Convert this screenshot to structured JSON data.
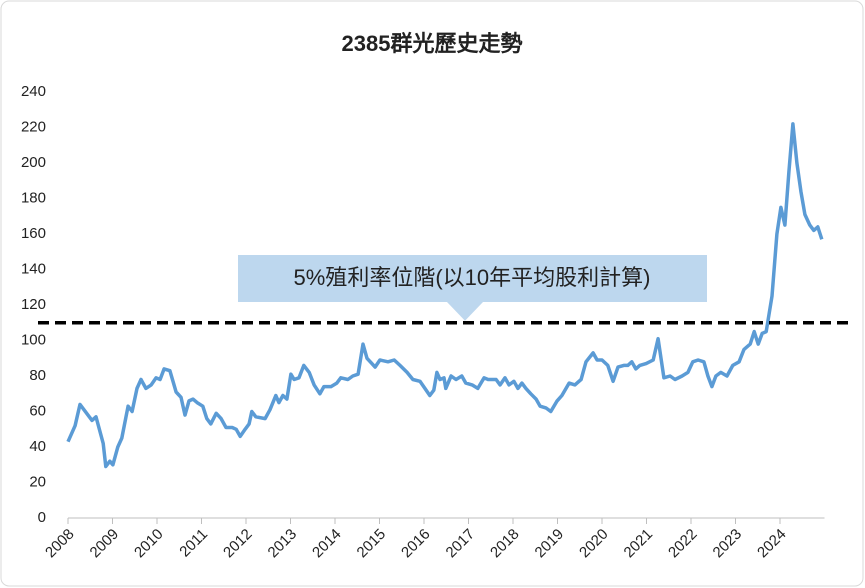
{
  "chart_data": {
    "type": "line",
    "title": "2385群光歷史走勢",
    "x": [
      2008.0,
      2008.16,
      2008.27,
      2008.54,
      2008.63,
      2008.79,
      2008.85,
      2008.94,
      2009.01,
      2009.12,
      2009.21,
      2009.35,
      2009.44,
      2009.55,
      2009.64,
      2009.75,
      2009.87,
      2009.98,
      2010.07,
      2010.16,
      2010.29,
      2010.43,
      2010.54,
      2010.63,
      2010.72,
      2010.81,
      2010.9,
      2011.03,
      2011.12,
      2011.21,
      2011.33,
      2011.44,
      2011.55,
      2011.69,
      2011.78,
      2011.87,
      2011.98,
      2012.07,
      2012.13,
      2012.22,
      2012.43,
      2012.54,
      2012.67,
      2012.74,
      2012.83,
      2012.92,
      2013.01,
      2013.08,
      2013.19,
      2013.3,
      2013.42,
      2013.53,
      2013.66,
      2013.75,
      2013.91,
      2014.04,
      2014.13,
      2014.29,
      2014.4,
      2014.52,
      2014.63,
      2014.72,
      2014.83,
      2014.9,
      2015.01,
      2015.19,
      2015.33,
      2015.46,
      2015.62,
      2015.75,
      2015.91,
      2016.02,
      2016.13,
      2016.22,
      2016.29,
      2016.36,
      2016.45,
      2016.49,
      2016.61,
      2016.72,
      2016.85,
      2016.94,
      2017.08,
      2017.21,
      2017.35,
      2017.44,
      2017.62,
      2017.71,
      2017.82,
      2017.91,
      2018.02,
      2018.11,
      2018.2,
      2018.29,
      2018.4,
      2018.52,
      2018.61,
      2018.74,
      2018.85,
      2018.99,
      2019.1,
      2019.26,
      2019.39,
      2019.53,
      2019.64,
      2019.8,
      2019.89,
      2020.0,
      2020.13,
      2020.25,
      2020.36,
      2020.49,
      2020.58,
      2020.67,
      2020.76,
      2020.85,
      2020.99,
      2021.15,
      2021.26,
      2021.39,
      2021.53,
      2021.64,
      2021.8,
      2021.93,
      2022.04,
      2022.16,
      2022.29,
      2022.38,
      2022.47,
      2022.56,
      2022.67,
      2022.81,
      2022.94,
      2023.08,
      2023.19,
      2023.33,
      2023.42,
      2023.51,
      2023.6,
      2023.69,
      2023.82,
      2023.93,
      2024.02,
      2024.11,
      2024.2,
      2024.29,
      2024.38,
      2024.47,
      2024.56,
      2024.67,
      2024.76,
      2024.85,
      2024.94
    ],
    "series": [
      {
        "color": "#5b9bd5",
        "values": [
          43,
          52,
          64,
          55,
          57,
          42,
          29,
          32,
          30,
          40,
          45,
          63,
          60,
          73,
          78,
          73,
          75,
          79,
          78,
          84,
          83,
          71,
          68,
          58,
          66,
          67,
          65,
          63,
          56,
          53,
          59,
          56,
          51,
          51,
          50,
          46,
          50,
          53,
          60,
          57,
          56,
          61,
          69,
          65,
          69,
          67,
          81,
          78,
          79,
          86,
          82,
          75,
          70,
          74,
          74,
          76,
          79,
          78,
          80,
          81,
          98,
          90,
          87,
          85,
          89,
          88,
          89,
          86,
          82,
          78,
          77,
          73,
          69,
          72,
          82,
          78,
          79,
          73,
          80,
          78,
          80,
          76,
          75,
          73,
          79,
          78,
          78,
          75,
          79,
          75,
          77,
          73,
          76,
          73,
          70,
          67,
          63,
          62,
          60,
          66,
          69,
          76,
          75,
          78,
          88,
          93,
          89,
          89,
          86,
          77,
          85,
          86,
          86,
          88,
          84,
          86,
          87,
          89,
          101,
          79,
          80,
          78,
          80,
          82,
          88,
          89,
          88,
          80,
          74,
          80,
          82,
          80,
          86,
          88,
          95,
          98,
          105,
          98,
          104,
          105,
          125,
          160,
          175,
          165,
          195,
          222,
          200,
          184,
          171,
          165,
          162,
          164,
          157
        ]
      }
    ],
    "xlim": [
      2008,
      2025
    ],
    "xticks": [
      2008,
      2009,
      2010,
      2011,
      2012,
      2013,
      2014,
      2015,
      2016,
      2017,
      2018,
      2019,
      2020,
      2021,
      2022,
      2023,
      2024
    ],
    "ylim": [
      0,
      240
    ],
    "yticks": [
      0,
      20,
      40,
      60,
      80,
      100,
      120,
      140,
      160,
      180,
      200,
      220,
      240
    ],
    "reference_line": {
      "value": 110,
      "color": "#000000"
    },
    "annotation": "5%殖利率位階(以10年平均股利計算)"
  }
}
